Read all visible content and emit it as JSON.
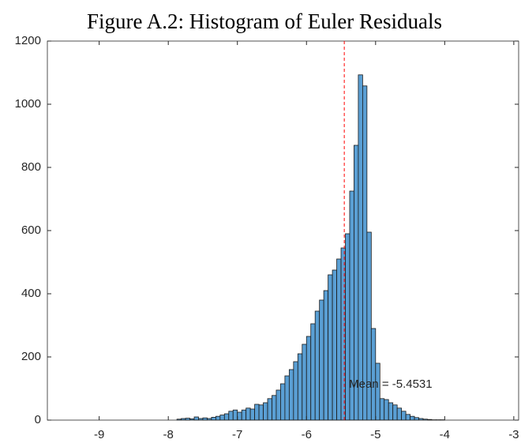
{
  "chart_data": {
    "type": "histogram",
    "title": "Figure A.2: Histogram of Euler Residuals",
    "bins": [
      -7.875,
      -7.8125,
      -7.75,
      -7.6875,
      -7.625,
      -7.5625,
      -7.5,
      -7.4375,
      -7.375,
      -7.3125,
      -7.25,
      -7.1875,
      -7.125,
      -7.0625,
      -7,
      -6.9375,
      -6.875,
      -6.8125,
      -6.75,
      -6.6875,
      -6.625,
      -6.5625,
      -6.5,
      -6.4375,
      -6.375,
      -6.3125,
      -6.25,
      -6.1875,
      -6.125,
      -6.0625,
      -6,
      -5.9375,
      -5.875,
      -5.8125,
      -5.75,
      -5.6875,
      -5.625,
      -5.5625,
      -5.5,
      -5.4375,
      -5.375,
      -5.3125,
      -5.25,
      -5.1875,
      -5.125,
      -5.0625,
      -5,
      -4.9375,
      -4.875,
      -4.8125,
      -4.75,
      -4.6875,
      -4.625,
      -4.5625,
      -4.5,
      -4.4375,
      -4.375,
      -4.3125,
      -4.25,
      -4.1875,
      -4.125,
      -4.0625,
      -4
    ],
    "values": [
      3,
      5,
      6,
      4,
      10,
      5,
      7,
      5,
      9,
      12,
      16,
      20,
      28,
      32,
      25,
      32,
      38,
      35,
      50,
      48,
      55,
      68,
      78,
      95,
      115,
      140,
      160,
      185,
      210,
      240,
      265,
      305,
      345,
      380,
      410,
      460,
      475,
      510,
      545,
      590,
      725,
      870,
      1093,
      1058,
      595,
      290,
      180,
      68,
      65,
      55,
      48,
      38,
      28,
      18,
      12,
      8,
      5,
      3,
      2,
      1,
      1,
      1
    ],
    "color": "#5a9fd4",
    "mean": -5.4531,
    "mean_label": "Mean = -5.4531",
    "mean_color": "#ff0000",
    "xlim": [
      -9.75,
      -2.93
    ],
    "xticks": [
      -9,
      -8,
      -7,
      -6,
      -5,
      -4,
      -3
    ],
    "ylim": [
      0,
      1200
    ],
    "yticks": [
      0,
      200,
      400,
      600,
      800,
      1000,
      1200
    ]
  }
}
